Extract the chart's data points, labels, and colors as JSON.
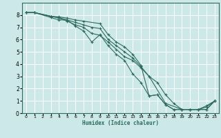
{
  "xlabel": "Humidex (Indice chaleur)",
  "background_color": "#cce8e8",
  "grid_color": "#ffffff",
  "line_color": "#2e6b5e",
  "xlim": [
    -0.5,
    23.5
  ],
  "ylim": [
    0,
    9
  ],
  "xticks": [
    0,
    1,
    2,
    3,
    4,
    5,
    6,
    7,
    8,
    9,
    10,
    11,
    12,
    13,
    14,
    15,
    16,
    17,
    18,
    19,
    20,
    21,
    22,
    23
  ],
  "yticks": [
    0,
    1,
    2,
    3,
    4,
    5,
    6,
    7,
    8
  ],
  "series": [
    {
      "x": [
        0,
        1,
        3,
        4,
        5,
        6,
        7,
        8,
        9,
        10,
        11,
        12,
        13,
        14,
        15,
        17,
        19,
        20,
        21,
        22,
        23
      ],
      "y": [
        8.2,
        8.2,
        7.9,
        7.75,
        7.5,
        7.2,
        7.0,
        6.5,
        6.35,
        5.8,
        5.2,
        4.6,
        4.3,
        3.7,
        3.0,
        0.8,
        0.3,
        0.3,
        0.3,
        0.3,
        1.0
      ]
    },
    {
      "x": [
        0,
        1,
        3,
        4,
        5,
        6,
        7,
        8,
        9,
        10,
        11,
        12,
        13,
        14,
        15,
        16,
        17,
        18,
        19,
        20,
        21,
        22,
        23
      ],
      "y": [
        8.2,
        8.2,
        7.9,
        7.8,
        7.6,
        7.4,
        7.2,
        7.0,
        6.9,
        6.0,
        5.5,
        5.0,
        4.5,
        3.8,
        3.0,
        2.5,
        1.5,
        0.8,
        0.3,
        0.3,
        0.3,
        0.6,
        1.0
      ]
    },
    {
      "x": [
        0,
        1,
        3,
        4,
        5,
        6,
        7,
        9,
        10,
        11,
        12,
        13,
        14,
        15,
        16,
        17,
        18,
        19,
        20,
        22,
        23
      ],
      "y": [
        8.2,
        8.2,
        7.9,
        7.85,
        7.75,
        7.6,
        7.5,
        7.3,
        6.4,
        5.8,
        5.4,
        4.8,
        3.9,
        1.4,
        1.5,
        0.7,
        0.3,
        0.3,
        0.3,
        0.3,
        1.0
      ]
    },
    {
      "x": [
        0,
        1,
        3,
        4,
        5,
        6,
        7,
        8,
        9,
        10,
        11,
        12,
        13,
        14,
        15,
        16,
        17,
        18,
        19,
        20,
        21,
        22,
        23
      ],
      "y": [
        8.2,
        8.2,
        7.8,
        7.6,
        7.6,
        7.1,
        6.7,
        5.8,
        6.4,
        5.5,
        4.8,
        4.3,
        3.2,
        2.5,
        1.4,
        1.5,
        0.7,
        0.3,
        0.3,
        0.3,
        0.3,
        0.5,
        1.0
      ]
    }
  ]
}
